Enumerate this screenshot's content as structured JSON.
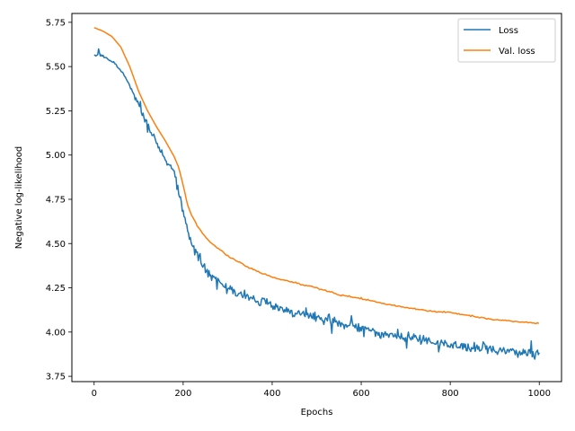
{
  "chart_data": {
    "type": "line",
    "title": "",
    "xlabel": "Epochs",
    "ylabel": "Negative log-likelihood",
    "xlim": [
      -50,
      1050
    ],
    "ylim": [
      3.72,
      5.8
    ],
    "xticks": [
      0,
      200,
      400,
      600,
      800,
      1000
    ],
    "yticks": [
      3.75,
      4.0,
      4.25,
      4.5,
      4.75,
      5.0,
      5.25,
      5.5,
      5.75
    ],
    "ytick_labels": [
      "3.75",
      "4.00",
      "4.25",
      "4.50",
      "4.75",
      "5.00",
      "5.25",
      "5.50",
      "5.75"
    ],
    "grid": false,
    "legend_position": "top-right",
    "series": [
      {
        "name": "Loss",
        "color": "#1f77b4",
        "noisy": true,
        "x": [
          0,
          10,
          20,
          40,
          60,
          80,
          100,
          120,
          140,
          160,
          180,
          190,
          200,
          210,
          220,
          240,
          260,
          280,
          300,
          350,
          400,
          450,
          500,
          550,
          600,
          650,
          700,
          750,
          800,
          850,
          900,
          950,
          1000
        ],
        "y": [
          5.56,
          5.57,
          5.56,
          5.53,
          5.48,
          5.4,
          5.28,
          5.17,
          5.07,
          4.98,
          4.9,
          4.8,
          4.68,
          4.58,
          4.5,
          4.4,
          4.33,
          4.28,
          4.25,
          4.19,
          4.15,
          4.11,
          4.08,
          4.05,
          4.02,
          3.99,
          3.97,
          3.95,
          3.93,
          3.91,
          3.9,
          3.89,
          3.87
        ]
      },
      {
        "name": "Val. loss",
        "color": "#ff7f0e",
        "noisy": false,
        "x": [
          0,
          10,
          20,
          40,
          60,
          80,
          100,
          120,
          140,
          160,
          180,
          190,
          200,
          210,
          220,
          240,
          260,
          280,
          300,
          350,
          400,
          450,
          500,
          550,
          600,
          650,
          700,
          750,
          800,
          850,
          900,
          950,
          1000
        ],
        "y": [
          5.72,
          5.71,
          5.7,
          5.67,
          5.61,
          5.5,
          5.36,
          5.25,
          5.16,
          5.08,
          4.99,
          4.93,
          4.83,
          4.72,
          4.65,
          4.57,
          4.51,
          4.47,
          4.43,
          4.36,
          4.31,
          4.28,
          4.25,
          4.21,
          4.19,
          4.16,
          4.14,
          4.12,
          4.11,
          4.09,
          4.07,
          4.06,
          4.05
        ]
      }
    ]
  }
}
